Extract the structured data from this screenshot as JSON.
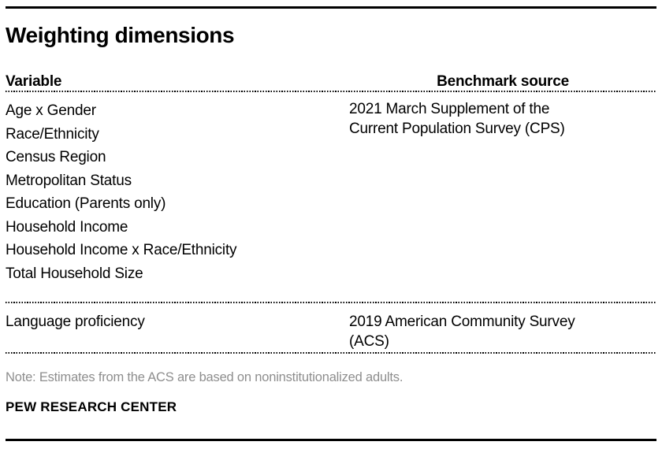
{
  "title": "Weighting dimensions",
  "table": {
    "columns": {
      "variable_header": "Variable",
      "benchmark_header": "Benchmark source"
    },
    "rows": [
      {
        "variables": [
          "Age x Gender",
          "Race/Ethnicity",
          "Census Region",
          "Metropolitan Status",
          "Education (Parents only)",
          "Household Income",
          "Household Income x Race/Ethnicity",
          "Total Household Size"
        ],
        "benchmark_source": "2021 March Supplement of the Current Population Survey (CPS)"
      },
      {
        "variables": [
          "Language proficiency"
        ],
        "benchmark_source": "2019 American Community Survey (ACS)"
      }
    ]
  },
  "note": "Note: Estimates from the ACS are based on noninstitutionalized adults.",
  "source": "PEW RESEARCH CENTER",
  "colors": {
    "text": "#000000",
    "note_gray": "#8e8e8e",
    "rule": "#000000"
  }
}
